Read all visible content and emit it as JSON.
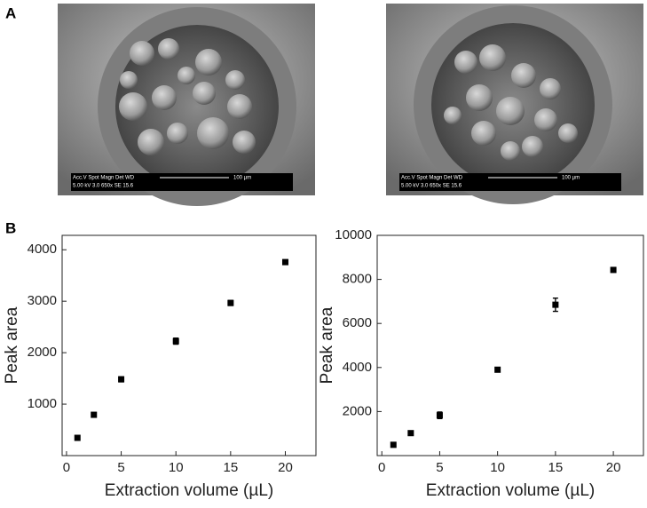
{
  "panels": {
    "a": "A",
    "b": "B"
  },
  "micrographs": [
    {
      "header": "Acc.V  Spot Magn   Det  WD",
      "params": "5.00 kV 3.0  650x    SE  15.6",
      "scale": "100 µm"
    },
    {
      "header": "Acc.V  Spot Magn   Det  WD",
      "params": "5.00 kV 3.0  650x    SE  15.6",
      "scale": "100 µm"
    }
  ],
  "chart_data": [
    {
      "type": "scatter",
      "x_label": "Extraction volume (µL)",
      "y_label": "Peak area",
      "color": "#000000",
      "x": [
        1,
        2.5,
        5,
        10,
        15,
        20
      ],
      "values": [
        345,
        793,
        1483,
        2224,
        2966,
        3760
      ],
      "errors": [
        40,
        40,
        50,
        60,
        50,
        45
      ],
      "xlim": [
        -0.4,
        22.8
      ],
      "ylim": [
        0,
        4280
      ],
      "xticks": [
        0,
        5,
        10,
        15,
        20
      ],
      "yticks": [
        1000,
        2000,
        3000,
        4000
      ]
    },
    {
      "type": "scatter",
      "x_label": "Extraction volume (µL)",
      "y_label": "Peak area",
      "color": "#000000",
      "x": [
        1,
        2.5,
        5,
        10,
        15,
        20
      ],
      "values": [
        490,
        1020,
        1830,
        3900,
        6850,
        8430
      ],
      "errors": [
        60,
        80,
        150,
        100,
        300,
        90
      ],
      "xlim": [
        -0.4,
        22.6
      ],
      "ylim": [
        0,
        10000
      ],
      "xticks": [
        0,
        5,
        10,
        15,
        20
      ],
      "yticks": [
        2000,
        4000,
        6000,
        8000,
        10000
      ]
    }
  ]
}
